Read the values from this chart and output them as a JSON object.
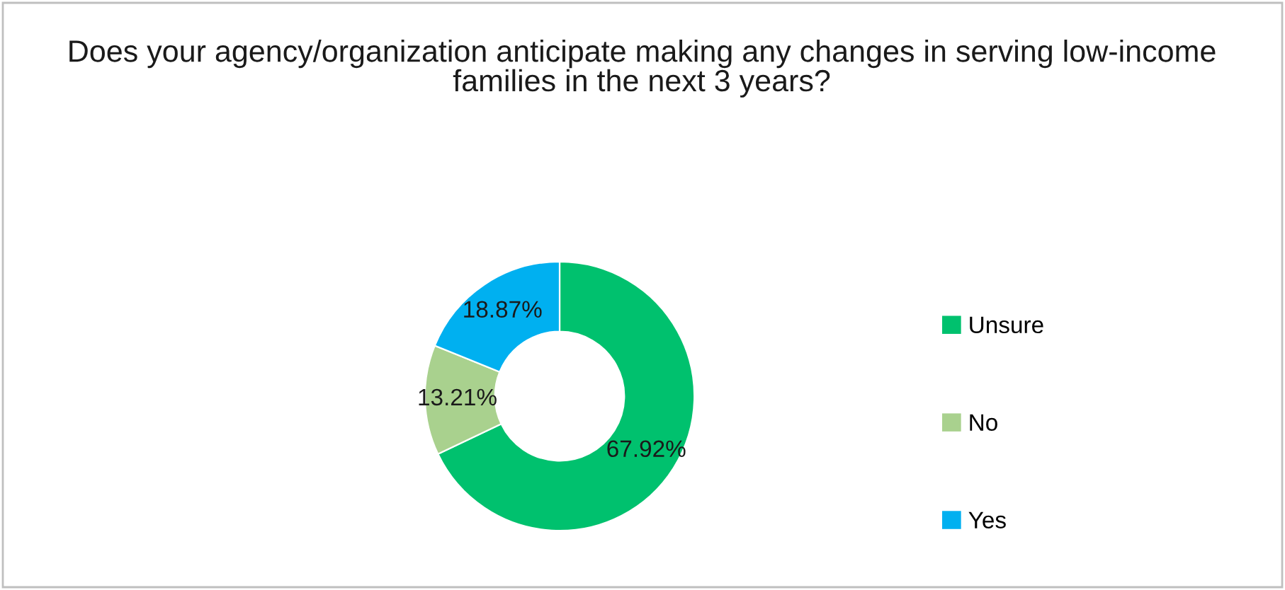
{
  "chart_data": {
    "type": "donut",
    "title": "Does your agency/organization anticipate making any changes in serving low-income families in the next 3 years?",
    "categories": [
      "Unsure",
      "No",
      "Yes"
    ],
    "values": [
      67.92,
      13.21,
      18.87
    ],
    "colors": [
      "#00c16e",
      "#a9d18e",
      "#00b0f0"
    ],
    "value_labels": [
      "67.92%",
      "13.21%",
      "18.87%"
    ],
    "legend": "right"
  }
}
